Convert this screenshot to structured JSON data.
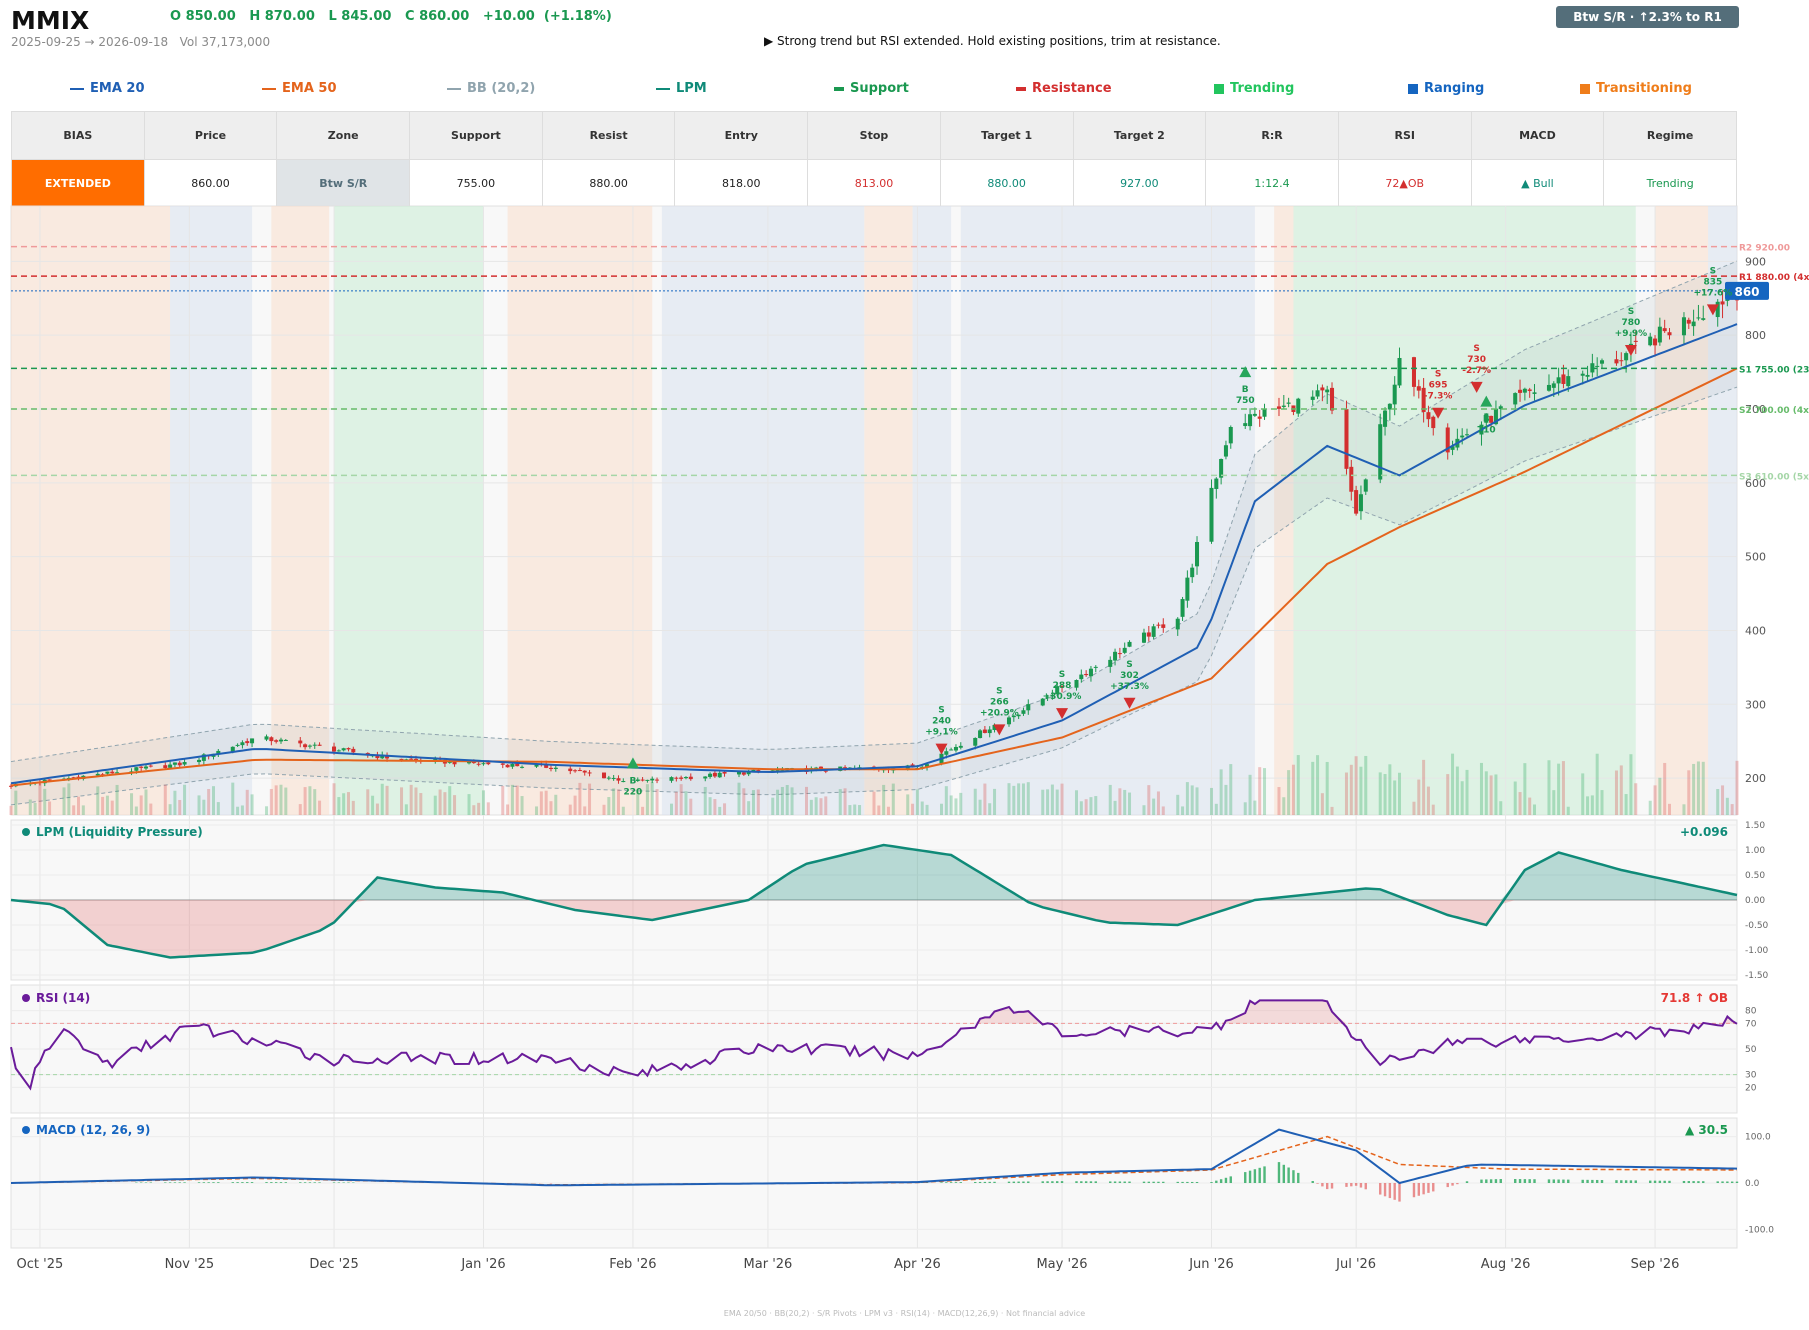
{
  "header": {
    "ticker": "MMIX",
    "ohlc": "O 850.00   H 870.00   L 845.00   C 860.00   +10.00  (+1.18%)",
    "range_volume": "2025-09-25 → 2026-09-18   Vol 37,173,000",
    "note": "▶  Strong trend but RSI extended. Hold existing positions, trim at resistance.",
    "badge": "Btw S/R  ·  ↑2.3% to R1"
  },
  "legend": [
    {
      "label": "EMA 20",
      "color": "#1f5fb4",
      "kind": "line"
    },
    {
      "label": "EMA 50",
      "color": "#e4641c",
      "kind": "line"
    },
    {
      "label": "BB (20,2)",
      "color": "#90a4ae",
      "kind": "line"
    },
    {
      "label": "LPM",
      "color": "#0f8a78",
      "kind": "line"
    },
    {
      "label": "Support",
      "color": "#1a9850",
      "kind": "dash"
    },
    {
      "label": "Resistance",
      "color": "#d32f2f",
      "kind": "dash"
    },
    {
      "label": "Trending",
      "color": "#22c55e",
      "kind": "box"
    },
    {
      "label": "Ranging",
      "color": "#1565c0",
      "kind": "box"
    },
    {
      "label": "Transitioning",
      "color": "#ef7d1a",
      "kind": "box"
    }
  ],
  "summary": {
    "headers": [
      "BIAS",
      "Price",
      "Zone",
      "Support",
      "Resist",
      "Entry",
      "Stop",
      "Target 1",
      "Target 2",
      "R:R",
      "RSI",
      "MACD",
      "Regime"
    ],
    "values": [
      "EXTENDED",
      "860.00",
      "Btw S/R",
      "755.00",
      "880.00",
      "818.00",
      "813.00",
      "880.00",
      "927.00",
      "1:12.4",
      "72▲OB",
      "▲ Bull",
      "Trending"
    ],
    "colors": [
      "#ffffff",
      "#222222",
      "#546e7a",
      "#222222",
      "#222222",
      "#222222",
      "#d32f2f",
      "#0f8a78",
      "#0f8a78",
      "#1a9850",
      "#d32f2f",
      "#0f8a78",
      "#1a9850"
    ],
    "bias_bg": "#ff6d00",
    "zone_bg": "#e0e4e7"
  },
  "chart_data": [
    {
      "type": "candlestick",
      "x_ticks": [
        "Oct '25",
        "Nov '25",
        "Dec '25",
        "Jan '26",
        "Feb '26",
        "Mar '26",
        "Apr '26",
        "May '26",
        "Jun '26",
        "Jul '26",
        "Aug '26",
        "Sep '26"
      ],
      "y_ticks": [
        200,
        300,
        400,
        500,
        600,
        700,
        800,
        900
      ],
      "ylim": [
        150,
        975
      ],
      "key_points": [
        {
          "date": "2025-09-25",
          "close": 190
        },
        {
          "date": "2025-10-31",
          "close": 220
        },
        {
          "date": "2025-11-15",
          "close": 255
        },
        {
          "date": "2025-12-15",
          "close": 225
        },
        {
          "date": "2026-01-15",
          "close": 215
        },
        {
          "date": "2026-02-01",
          "close": 195
        },
        {
          "date": "2026-03-01",
          "close": 210
        },
        {
          "date": "2026-04-01",
          "close": 215
        },
        {
          "date": "2026-04-25",
          "close": 300
        },
        {
          "date": "2026-05-25",
          "close": 420
        },
        {
          "date": "2026-06-05",
          "close": 680
        },
        {
          "date": "2026-06-25",
          "close": 720
        },
        {
          "date": "2026-07-01",
          "close": 560
        },
        {
          "date": "2026-07-10",
          "close": 760
        },
        {
          "date": "2026-07-20",
          "close": 650
        },
        {
          "date": "2026-08-05",
          "close": 720
        },
        {
          "date": "2026-08-25",
          "close": 770
        },
        {
          "date": "2026-09-18",
          "close": 860
        }
      ],
      "ema20_key": [
        {
          "date": "2025-09-25",
          "value": 193
        },
        {
          "date": "2025-11-15",
          "value": 240
        },
        {
          "date": "2026-01-15",
          "value": 218
        },
        {
          "date": "2026-03-01",
          "value": 208
        },
        {
          "date": "2026-04-01",
          "value": 216
        },
        {
          "date": "2026-05-01",
          "value": 278
        },
        {
          "date": "2026-05-30",
          "value": 380
        },
        {
          "date": "2026-06-10",
          "value": 575
        },
        {
          "date": "2026-06-25",
          "value": 650
        },
        {
          "date": "2026-07-10",
          "value": 610
        },
        {
          "date": "2026-08-05",
          "value": 705
        },
        {
          "date": "2026-09-18",
          "value": 815
        }
      ],
      "ema50_key": [
        {
          "date": "2025-09-25",
          "value": 190
        },
        {
          "date": "2025-11-15",
          "value": 225
        },
        {
          "date": "2026-01-15",
          "value": 222
        },
        {
          "date": "2026-03-01",
          "value": 212
        },
        {
          "date": "2026-04-01",
          "value": 212
        },
        {
          "date": "2026-05-01",
          "value": 255
        },
        {
          "date": "2026-06-01",
          "value": 335
        },
        {
          "date": "2026-06-25",
          "value": 490
        },
        {
          "date": "2026-07-10",
          "value": 540
        },
        {
          "date": "2026-08-05",
          "value": 615
        },
        {
          "date": "2026-09-18",
          "value": 755
        }
      ],
      "levels": [
        {
          "label": "R2 920.00",
          "value": 920,
          "color": "#ef9a9a",
          "style": "dash"
        },
        {
          "label": "R1 880.00 (4x)",
          "value": 880,
          "color": "#d32f2f",
          "style": "dash"
        },
        {
          "label": "S1 755.00 (23x)",
          "value": 755,
          "color": "#1a9850",
          "style": "dash"
        },
        {
          "label": "S2 700.00 (4x)",
          "value": 700,
          "color": "#66bb6a",
          "style": "dash"
        },
        {
          "label": "S3 610.00 (5x)",
          "value": 610,
          "color": "#a5d6a7",
          "style": "dash"
        }
      ],
      "price_tag": {
        "label": "860",
        "value": 860
      },
      "signals": [
        {
          "type": "B",
          "date": "2026-02-01",
          "price": 220,
          "label": "B\n220"
        },
        {
          "type": "S",
          "date": "2026-04-06",
          "price": 240,
          "label": "S\n240\n+9.1%"
        },
        {
          "type": "S",
          "date": "2026-04-18",
          "price": 266,
          "label": "S\n266\n+20.9%"
        },
        {
          "type": "S",
          "date": "2026-05-01",
          "price": 288,
          "label": "S\n288\n+30.9%"
        },
        {
          "type": "S",
          "date": "2026-05-15",
          "price": 302,
          "label": "S\n302\n+37.3%"
        },
        {
          "type": "B",
          "date": "2026-06-08",
          "price": 750,
          "label": "B\n750"
        },
        {
          "type": "S",
          "date": "2026-07-18",
          "price": 695,
          "label": "S\n695\n-7.3%"
        },
        {
          "type": "S",
          "date": "2026-07-26",
          "price": 730,
          "label": "S\n730\n-2.7%"
        },
        {
          "type": "B",
          "date": "2026-07-28",
          "price": 710,
          "label": "B\n710"
        },
        {
          "type": "S",
          "date": "2026-08-27",
          "price": 780,
          "label": "S\n780\n+9.9%"
        },
        {
          "type": "S",
          "date": "2026-09-13",
          "price": 835,
          "label": "S\n835\n+17.6%"
        }
      ],
      "regimes": [
        {
          "start": "2025-09-25",
          "end": "2025-10-28",
          "regime": "Transitioning"
        },
        {
          "start": "2025-10-28",
          "end": "2025-11-14",
          "regime": "Ranging"
        },
        {
          "start": "2025-11-18",
          "end": "2025-11-30",
          "regime": "Transitioning"
        },
        {
          "start": "2025-12-01",
          "end": "2026-01-01",
          "regime": "Trending"
        },
        {
          "start": "2026-01-06",
          "end": "2026-02-05",
          "regime": "Transitioning"
        },
        {
          "start": "2026-02-07",
          "end": "2026-03-21",
          "regime": "Ranging"
        },
        {
          "start": "2026-03-21",
          "end": "2026-03-31",
          "regime": "Transitioning"
        },
        {
          "start": "2026-03-31",
          "end": "2026-04-08",
          "regime": "Ranging"
        },
        {
          "start": "2026-04-10",
          "end": "2026-06-10",
          "regime": "Ranging"
        },
        {
          "start": "2026-06-14",
          "end": "2026-06-18",
          "regime": "Transitioning"
        },
        {
          "start": "2026-06-18",
          "end": "2026-08-28",
          "regime": "Trending"
        },
        {
          "start": "2026-09-01",
          "end": "2026-09-12",
          "regime": "Transitioning"
        },
        {
          "start": "2026-09-12",
          "end": "2026-09-18",
          "regime": "Ranging"
        }
      ]
    },
    {
      "type": "area",
      "title": "LPM (Liquidity Pressure)",
      "value_label": "+0.096",
      "y_ticks": [
        1.5,
        1.0,
        0.5,
        0.0,
        -0.5,
        -1.0,
        -1.5
      ],
      "tick_labels": [
        "1.50",
        "1.00",
        "0.50",
        "0.00",
        "-0.50",
        "-1.00",
        "-1.50"
      ],
      "ylim": [
        -1.6,
        1.6
      ],
      "key_points": [
        {
          "date": "2025-09-25",
          "value": 0.0
        },
        {
          "date": "2025-10-05",
          "value": -0.1
        },
        {
          "date": "2025-10-15",
          "value": -0.9
        },
        {
          "date": "2025-10-28",
          "value": -1.15
        },
        {
          "date": "2025-11-15",
          "value": -1.05
        },
        {
          "date": "2025-11-30",
          "value": -0.55
        },
        {
          "date": "2025-12-10",
          "value": 0.45
        },
        {
          "date": "2025-12-22",
          "value": 0.25
        },
        {
          "date": "2026-01-05",
          "value": 0.15
        },
        {
          "date": "2026-01-20",
          "value": -0.2
        },
        {
          "date": "2026-02-05",
          "value": -0.4
        },
        {
          "date": "2026-02-25",
          "value": 0.0
        },
        {
          "date": "2026-03-08",
          "value": 0.7
        },
        {
          "date": "2026-03-25",
          "value": 1.1
        },
        {
          "date": "2026-04-08",
          "value": 0.9
        },
        {
          "date": "2026-04-25",
          "value": -0.1
        },
        {
          "date": "2026-05-10",
          "value": -0.45
        },
        {
          "date": "2026-05-25",
          "value": -0.5
        },
        {
          "date": "2026-06-10",
          "value": 0.0
        },
        {
          "date": "2026-07-05",
          "value": 0.25
        },
        {
          "date": "2026-07-20",
          "value": -0.3
        },
        {
          "date": "2026-07-28",
          "value": -0.5
        },
        {
          "date": "2026-08-05",
          "value": 0.6
        },
        {
          "date": "2026-08-12",
          "value": 0.95
        },
        {
          "date": "2026-08-25",
          "value": 0.6
        },
        {
          "date": "2026-09-18",
          "value": 0.1
        }
      ]
    },
    {
      "type": "line",
      "title": "RSI (14)",
      "value_label": "71.8 ↑ OB",
      "y_ticks": [
        80,
        70,
        50,
        30,
        20
      ],
      "ylim": [
        0,
        100
      ],
      "bands": [
        30,
        70
      ],
      "key_points": [
        {
          "date": "2025-09-25",
          "value": 50
        },
        {
          "date": "2025-09-28",
          "value": 15
        },
        {
          "date": "2025-10-05",
          "value": 68
        },
        {
          "date": "2025-10-15",
          "value": 38
        },
        {
          "date": "2025-11-01",
          "value": 68
        },
        {
          "date": "2025-12-01",
          "value": 42
        },
        {
          "date": "2026-01-15",
          "value": 43
        },
        {
          "date": "2026-02-01",
          "value": 30
        },
        {
          "date": "2026-03-01",
          "value": 52
        },
        {
          "date": "2026-04-01",
          "value": 45
        },
        {
          "date": "2026-04-20",
          "value": 85
        },
        {
          "date": "2026-05-01",
          "value": 62
        },
        {
          "date": "2026-06-01",
          "value": 65
        },
        {
          "date": "2026-06-10",
          "value": 88
        },
        {
          "date": "2026-06-25",
          "value": 88
        },
        {
          "date": "2026-07-05",
          "value": 38
        },
        {
          "date": "2026-07-20",
          "value": 55
        },
        {
          "date": "2026-08-20",
          "value": 60
        },
        {
          "date": "2026-09-10",
          "value": 66
        },
        {
          "date": "2026-09-18",
          "value": 72
        }
      ]
    },
    {
      "type": "line",
      "title": "MACD (12, 26, 9)",
      "value_label": "▲ 30.5",
      "y_ticks": [
        100,
        0,
        -100
      ],
      "tick_labels": [
        "100.0",
        "0.0",
        "-100.0"
      ],
      "ylim": [
        -140,
        140
      ],
      "macd_key": [
        {
          "date": "2025-09-25",
          "value": 0
        },
        {
          "date": "2025-11-15",
          "value": 12
        },
        {
          "date": "2026-01-15",
          "value": -5
        },
        {
          "date": "2026-04-01",
          "value": 2
        },
        {
          "date": "2026-05-01",
          "value": 22
        },
        {
          "date": "2026-06-01",
          "value": 30
        },
        {
          "date": "2026-06-15",
          "value": 115
        },
        {
          "date": "2026-07-01",
          "value": 70
        },
        {
          "date": "2026-07-10",
          "value": 0
        },
        {
          "date": "2026-07-25",
          "value": 40
        },
        {
          "date": "2026-09-18",
          "value": 31
        }
      ],
      "signal_key": [
        {
          "date": "2025-09-25",
          "value": 0
        },
        {
          "date": "2025-11-15",
          "value": 10
        },
        {
          "date": "2026-01-15",
          "value": -4
        },
        {
          "date": "2026-04-01",
          "value": 1
        },
        {
          "date": "2026-05-01",
          "value": 18
        },
        {
          "date": "2026-06-01",
          "value": 28
        },
        {
          "date": "2026-06-25",
          "value": 100
        },
        {
          "date": "2026-07-10",
          "value": 40
        },
        {
          "date": "2026-08-01",
          "value": 30
        },
        {
          "date": "2026-09-18",
          "value": 28
        }
      ]
    }
  ],
  "footer": "EMA 20/50  ·  BB(20,2)  ·  S/R Pivots  ·  LPM v3  ·  RSI(14)  ·  MACD(12,26,9)  ·  Not financial advice"
}
